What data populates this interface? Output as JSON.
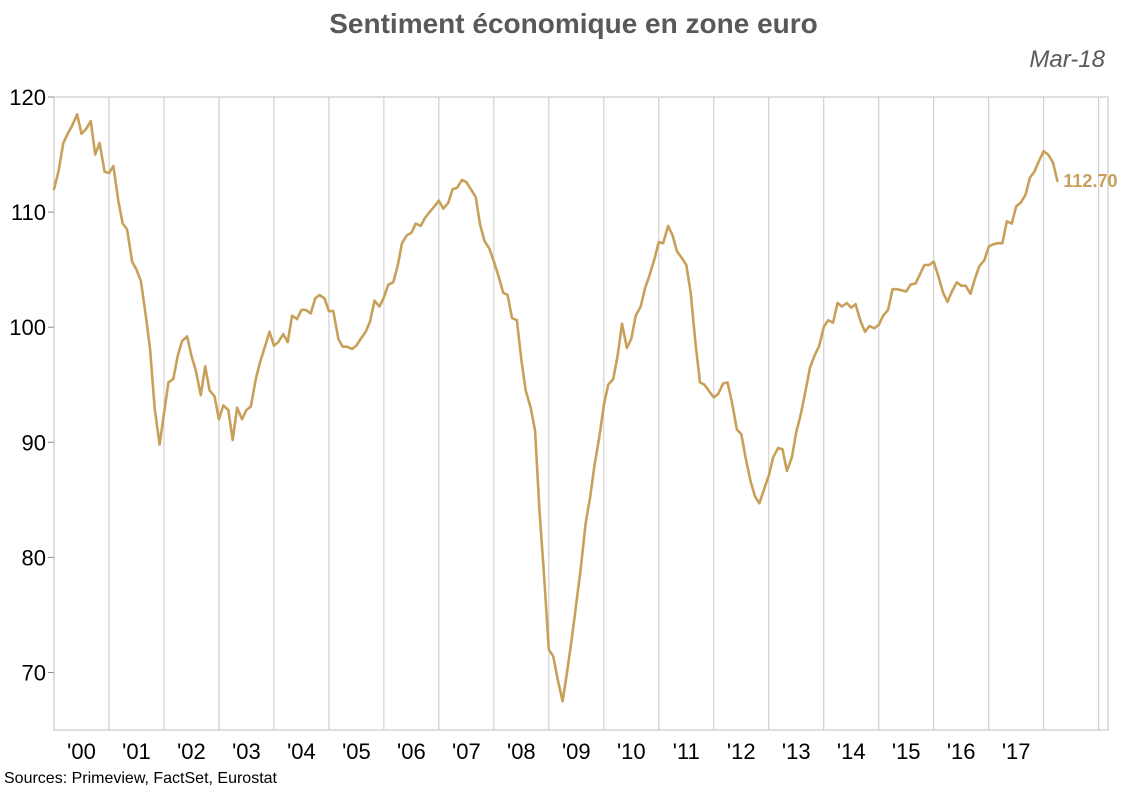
{
  "title": "Sentiment économique en zone euro",
  "date_label": "Mar-18",
  "source": "Sources: Primeview, FactSet, Eurostat",
  "chart_data": {
    "type": "line",
    "title": "Sentiment économique en zone euro",
    "xlabel": "",
    "ylabel": "",
    "ylim": [
      65,
      120
    ],
    "xlim": [
      2000.0,
      2019.17
    ],
    "yticks": [
      70,
      80,
      90,
      100,
      110,
      120
    ],
    "xtick_labels": [
      "'00",
      "'01",
      "'02",
      "'03",
      "'04",
      "'05",
      "'06",
      "'07",
      "'08",
      "'09",
      "'10",
      "'11",
      "'12",
      "'13",
      "'14",
      "'15",
      "'16",
      "'17"
    ],
    "xtick_years": [
      2000,
      2001,
      2002,
      2003,
      2004,
      2005,
      2006,
      2007,
      2008,
      2009,
      2010,
      2011,
      2012,
      2013,
      2014,
      2015,
      2016,
      2017
    ],
    "grid": "vertical",
    "line_color": "#C9A05A",
    "last_value_label": "112.70",
    "series": [
      {
        "points": [
          [
            2000.0,
            112
          ],
          [
            2000.08,
            113.5
          ],
          [
            2000.17,
            116
          ],
          [
            2000.25,
            116.8
          ],
          [
            2000.33,
            117.5
          ],
          [
            2000.42,
            118.5
          ],
          [
            2000.5,
            116.8
          ],
          [
            2000.58,
            117.2
          ],
          [
            2000.67,
            117.9
          ],
          [
            2000.75,
            115
          ],
          [
            2000.83,
            116
          ],
          [
            2000.92,
            113.5
          ],
          [
            2001.0,
            113.4
          ],
          [
            2001.08,
            114
          ],
          [
            2001.17,
            111
          ],
          [
            2001.25,
            109
          ],
          [
            2001.33,
            108.5
          ],
          [
            2001.42,
            105.7
          ],
          [
            2001.5,
            105
          ],
          [
            2001.58,
            104
          ],
          [
            2001.67,
            101
          ],
          [
            2001.75,
            98
          ],
          [
            2001.83,
            93
          ],
          [
            2001.92,
            89.8
          ],
          [
            2002.0,
            92.5
          ],
          [
            2002.08,
            95.2
          ],
          [
            2002.17,
            95.5
          ],
          [
            2002.25,
            97.5
          ],
          [
            2002.33,
            98.8
          ],
          [
            2002.42,
            99.2
          ],
          [
            2002.5,
            97.5
          ],
          [
            2002.58,
            96.2
          ],
          [
            2002.67,
            94.1
          ],
          [
            2002.75,
            96.6
          ],
          [
            2002.83,
            94.5
          ],
          [
            2002.92,
            94
          ],
          [
            2003.0,
            92
          ],
          [
            2003.08,
            93.2
          ],
          [
            2003.17,
            92.8
          ],
          [
            2003.25,
            90.2
          ],
          [
            2003.33,
            93
          ],
          [
            2003.42,
            92
          ],
          [
            2003.5,
            92.8
          ],
          [
            2003.58,
            93.1
          ],
          [
            2003.67,
            95.5
          ],
          [
            2003.75,
            97
          ],
          [
            2003.83,
            98.2
          ],
          [
            2003.92,
            99.6
          ],
          [
            2004.0,
            98.4
          ],
          [
            2004.08,
            98.7
          ],
          [
            2004.17,
            99.4
          ],
          [
            2004.25,
            98.7
          ],
          [
            2004.33,
            101
          ],
          [
            2004.42,
            100.7
          ],
          [
            2004.5,
            101.5
          ],
          [
            2004.58,
            101.5
          ],
          [
            2004.67,
            101.2
          ],
          [
            2004.75,
            102.5
          ],
          [
            2004.83,
            102.8
          ],
          [
            2004.92,
            102.5
          ],
          [
            2005.0,
            101.4
          ],
          [
            2005.08,
            101.4
          ],
          [
            2005.17,
            99
          ],
          [
            2005.25,
            98.3
          ],
          [
            2005.33,
            98.3
          ],
          [
            2005.42,
            98.1
          ],
          [
            2005.5,
            98.4
          ],
          [
            2005.58,
            99
          ],
          [
            2005.67,
            99.6
          ],
          [
            2005.75,
            100.5
          ],
          [
            2005.83,
            102.3
          ],
          [
            2005.92,
            101.8
          ],
          [
            2006.0,
            102.6
          ],
          [
            2006.08,
            103.7
          ],
          [
            2006.17,
            103.9
          ],
          [
            2006.25,
            105.3
          ],
          [
            2006.33,
            107.3
          ],
          [
            2006.42,
            108
          ],
          [
            2006.5,
            108.2
          ],
          [
            2006.58,
            109
          ],
          [
            2006.67,
            108.8
          ],
          [
            2006.75,
            109.5
          ],
          [
            2006.83,
            110
          ],
          [
            2006.92,
            110.5
          ],
          [
            2007.0,
            111
          ],
          [
            2007.08,
            110.3
          ],
          [
            2007.17,
            110.8
          ],
          [
            2007.25,
            112
          ],
          [
            2007.33,
            112.1
          ],
          [
            2007.42,
            112.8
          ],
          [
            2007.5,
            112.6
          ],
          [
            2007.58,
            112
          ],
          [
            2007.67,
            111.3
          ],
          [
            2007.75,
            108.9
          ],
          [
            2007.83,
            107.5
          ],
          [
            2007.92,
            106.8
          ],
          [
            2008.0,
            105.7
          ],
          [
            2008.08,
            104.5
          ],
          [
            2008.17,
            103
          ],
          [
            2008.25,
            102.8
          ],
          [
            2008.33,
            100.8
          ],
          [
            2008.42,
            100.6
          ],
          [
            2008.5,
            97.2
          ],
          [
            2008.58,
            94.5
          ],
          [
            2008.67,
            93
          ],
          [
            2008.75,
            91
          ],
          [
            2008.83,
            84
          ],
          [
            2008.92,
            78
          ],
          [
            2009.0,
            72
          ],
          [
            2009.08,
            71.4
          ],
          [
            2009.17,
            69.2
          ],
          [
            2009.25,
            67.5
          ],
          [
            2009.33,
            70
          ],
          [
            2009.42,
            73
          ],
          [
            2009.5,
            76
          ],
          [
            2009.58,
            79
          ],
          [
            2009.67,
            83
          ],
          [
            2009.75,
            85.2
          ],
          [
            2009.83,
            88
          ],
          [
            2009.92,
            90.5
          ],
          [
            2010.0,
            93.2
          ],
          [
            2010.08,
            95
          ],
          [
            2010.17,
            95.5
          ],
          [
            2010.25,
            97.5
          ],
          [
            2010.33,
            100.3
          ],
          [
            2010.42,
            98.2
          ],
          [
            2010.5,
            99
          ],
          [
            2010.58,
            101
          ],
          [
            2010.67,
            101.8
          ],
          [
            2010.75,
            103.4
          ],
          [
            2010.83,
            104.5
          ],
          [
            2010.92,
            105.9
          ],
          [
            2011.0,
            107.4
          ],
          [
            2011.08,
            107.3
          ],
          [
            2011.17,
            108.8
          ],
          [
            2011.25,
            108
          ],
          [
            2011.33,
            106.6
          ],
          [
            2011.42,
            106
          ],
          [
            2011.5,
            105.4
          ],
          [
            2011.58,
            103
          ],
          [
            2011.67,
            98.5
          ],
          [
            2011.75,
            95.2
          ],
          [
            2011.83,
            95
          ],
          [
            2011.92,
            94.4
          ],
          [
            2012.0,
            93.9
          ],
          [
            2012.08,
            94.2
          ],
          [
            2012.17,
            95.1
          ],
          [
            2012.25,
            95.2
          ],
          [
            2012.33,
            93.5
          ],
          [
            2012.42,
            91.1
          ],
          [
            2012.5,
            90.7
          ],
          [
            2012.58,
            88.6
          ],
          [
            2012.67,
            86.6
          ],
          [
            2012.75,
            85.3
          ],
          [
            2012.83,
            84.7
          ],
          [
            2012.92,
            86
          ],
          [
            2013.0,
            87.1
          ],
          [
            2013.08,
            88.7
          ],
          [
            2013.17,
            89.5
          ],
          [
            2013.25,
            89.4
          ],
          [
            2013.33,
            87.5
          ],
          [
            2013.42,
            88.7
          ],
          [
            2013.5,
            90.9
          ],
          [
            2013.58,
            92.4
          ],
          [
            2013.67,
            94.5
          ],
          [
            2013.75,
            96.5
          ],
          [
            2013.83,
            97.5
          ],
          [
            2013.92,
            98.4
          ],
          [
            2014.0,
            100
          ],
          [
            2014.08,
            100.6
          ],
          [
            2014.17,
            100.4
          ],
          [
            2014.25,
            102.1
          ],
          [
            2014.33,
            101.8
          ],
          [
            2014.42,
            102.1
          ],
          [
            2014.5,
            101.7
          ],
          [
            2014.58,
            102
          ],
          [
            2014.67,
            100.5
          ],
          [
            2014.75,
            99.6
          ],
          [
            2014.83,
            100.1
          ],
          [
            2014.92,
            99.9
          ],
          [
            2015.0,
            100.2
          ],
          [
            2015.08,
            101
          ],
          [
            2015.17,
            101.5
          ],
          [
            2015.25,
            103.3
          ],
          [
            2015.33,
            103.3
          ],
          [
            2015.42,
            103.2
          ],
          [
            2015.5,
            103.1
          ],
          [
            2015.58,
            103.7
          ],
          [
            2015.67,
            103.8
          ],
          [
            2015.75,
            104.6
          ],
          [
            2015.83,
            105.4
          ],
          [
            2015.92,
            105.4
          ],
          [
            2016.0,
            105.7
          ],
          [
            2016.08,
            104.5
          ],
          [
            2016.17,
            103
          ],
          [
            2016.25,
            102.2
          ],
          [
            2016.33,
            103.1
          ],
          [
            2016.42,
            103.9
          ],
          [
            2016.5,
            103.6
          ],
          [
            2016.58,
            103.6
          ],
          [
            2016.67,
            102.9
          ],
          [
            2016.75,
            104.2
          ],
          [
            2016.83,
            105.3
          ],
          [
            2016.92,
            105.8
          ],
          [
            2017.0,
            107
          ],
          [
            2017.08,
            107.2
          ],
          [
            2017.17,
            107.3
          ],
          [
            2017.25,
            107.3
          ],
          [
            2017.33,
            109.2
          ],
          [
            2017.42,
            109
          ],
          [
            2017.5,
            110.5
          ],
          [
            2017.58,
            110.8
          ],
          [
            2017.67,
            111.5
          ],
          [
            2017.75,
            113
          ],
          [
            2017.83,
            113.5
          ],
          [
            2017.92,
            114.5
          ],
          [
            2018.0,
            115.3
          ],
          [
            2018.08,
            115
          ],
          [
            2018.17,
            114.3
          ],
          [
            2018.25,
            112.7
          ]
        ]
      }
    ]
  }
}
